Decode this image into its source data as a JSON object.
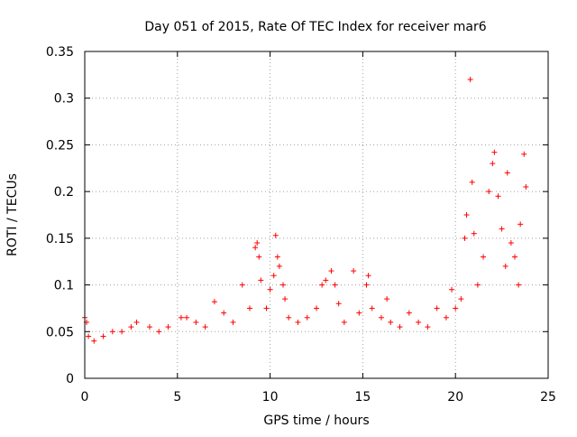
{
  "chart_data": {
    "type": "scatter",
    "title": "Day 051 of 2015, Rate Of TEC Index for receiver mar6",
    "xlabel": "GPS time / hours",
    "ylabel": "ROTI / TECUs",
    "xlim": [
      0,
      25
    ],
    "ylim": [
      0,
      0.35
    ],
    "x_ticks": [
      0,
      5,
      10,
      15,
      20,
      25
    ],
    "y_ticks": [
      0,
      0.05,
      0.1,
      0.15,
      0.2,
      0.25,
      0.3,
      0.35
    ],
    "x_tick_labels": [
      "0",
      "5",
      "10",
      "15",
      "20",
      "25"
    ],
    "y_tick_labels": [
      "0",
      "0.05",
      "0.1",
      "0.15",
      "0.2",
      "0.25",
      "0.3",
      "0.35"
    ],
    "grid": true,
    "legend": "none",
    "marker": "plus",
    "marker_color": "#ff0000",
    "series": [
      {
        "values": [
          [
            0.0,
            0.065
          ],
          [
            0.1,
            0.06
          ],
          [
            0.2,
            0.045
          ],
          [
            0.5,
            0.04
          ],
          [
            1.0,
            0.045
          ],
          [
            1.5,
            0.05
          ],
          [
            2.0,
            0.05
          ],
          [
            2.5,
            0.055
          ],
          [
            2.8,
            0.06
          ],
          [
            3.5,
            0.055
          ],
          [
            4.0,
            0.05
          ],
          [
            4.5,
            0.055
          ],
          [
            5.2,
            0.065
          ],
          [
            5.5,
            0.065
          ],
          [
            6.0,
            0.06
          ],
          [
            6.5,
            0.055
          ],
          [
            7.0,
            0.082
          ],
          [
            7.5,
            0.07
          ],
          [
            8.0,
            0.06
          ],
          [
            8.5,
            0.1
          ],
          [
            8.9,
            0.075
          ],
          [
            9.2,
            0.14
          ],
          [
            9.3,
            0.145
          ],
          [
            9.4,
            0.13
          ],
          [
            9.5,
            0.105
          ],
          [
            9.8,
            0.075
          ],
          [
            10.0,
            0.095
          ],
          [
            10.2,
            0.11
          ],
          [
            10.3,
            0.153
          ],
          [
            10.4,
            0.13
          ],
          [
            10.5,
            0.12
          ],
          [
            10.7,
            0.1
          ],
          [
            10.8,
            0.085
          ],
          [
            11.0,
            0.065
          ],
          [
            11.5,
            0.06
          ],
          [
            12.0,
            0.065
          ],
          [
            12.5,
            0.075
          ],
          [
            12.8,
            0.1
          ],
          [
            13.0,
            0.105
          ],
          [
            13.3,
            0.115
          ],
          [
            13.5,
            0.1
          ],
          [
            13.7,
            0.08
          ],
          [
            14.0,
            0.06
          ],
          [
            14.5,
            0.115
          ],
          [
            14.8,
            0.07
          ],
          [
            15.2,
            0.1
          ],
          [
            15.3,
            0.11
          ],
          [
            15.5,
            0.075
          ],
          [
            16.0,
            0.065
          ],
          [
            16.3,
            0.085
          ],
          [
            16.5,
            0.06
          ],
          [
            17.0,
            0.055
          ],
          [
            17.5,
            0.07
          ],
          [
            18.0,
            0.06
          ],
          [
            18.5,
            0.055
          ],
          [
            19.0,
            0.075
          ],
          [
            19.5,
            0.065
          ],
          [
            19.8,
            0.095
          ],
          [
            20.0,
            0.075
          ],
          [
            20.3,
            0.085
          ],
          [
            20.5,
            0.15
          ],
          [
            20.6,
            0.175
          ],
          [
            20.8,
            0.32
          ],
          [
            20.9,
            0.21
          ],
          [
            21.0,
            0.155
          ],
          [
            21.2,
            0.1
          ],
          [
            21.5,
            0.13
          ],
          [
            21.8,
            0.2
          ],
          [
            22.0,
            0.23
          ],
          [
            22.1,
            0.242
          ],
          [
            22.3,
            0.195
          ],
          [
            22.5,
            0.16
          ],
          [
            22.7,
            0.12
          ],
          [
            22.8,
            0.22
          ],
          [
            23.0,
            0.145
          ],
          [
            23.2,
            0.13
          ],
          [
            23.4,
            0.1
          ],
          [
            23.5,
            0.165
          ],
          [
            23.7,
            0.24
          ],
          [
            23.8,
            0.205
          ]
        ]
      }
    ]
  }
}
